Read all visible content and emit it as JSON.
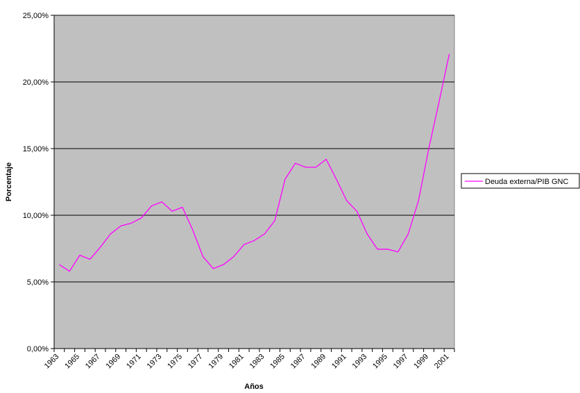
{
  "chart_data": {
    "type": "line",
    "x_label": "Años",
    "y_label": "Porcentaje",
    "categories": [
      "1963",
      null,
      "1965",
      null,
      "1967",
      null,
      "1969",
      null,
      "1971",
      null,
      "1973",
      null,
      "1975",
      null,
      "1977",
      null,
      "1979",
      null,
      "1981",
      null,
      "1983",
      null,
      "1985",
      null,
      "1987",
      null,
      "1989",
      null,
      "1991",
      null,
      "1993",
      null,
      "1995",
      null,
      "1997",
      null,
      "1999",
      null,
      "2001"
    ],
    "series": [
      {
        "name": "Deuda externa/PIB GNC",
        "color": "#ff00ff",
        "values": [
          6.3,
          5.8,
          7.0,
          6.7,
          7.6,
          8.6,
          9.2,
          9.4,
          9.8,
          10.7,
          11.0,
          10.3,
          10.6,
          8.9,
          6.9,
          6.0,
          6.3,
          6.9,
          7.8,
          8.1,
          8.6,
          9.6,
          12.7,
          13.9,
          13.6,
          13.6,
          14.2,
          12.7,
          11.1,
          10.3,
          8.6,
          7.45,
          7.45,
          7.25,
          8.6,
          11.1,
          15.0,
          18.5,
          22.1
        ]
      }
    ],
    "ylim": [
      0,
      25
    ],
    "yticks": [
      {
        "value": 0,
        "label": "0,00%"
      },
      {
        "value": 5,
        "label": "5,00%"
      },
      {
        "value": 10,
        "label": "10,00%"
      },
      {
        "value": 15,
        "label": "15,00%"
      },
      {
        "value": 20,
        "label": "20,00%"
      },
      {
        "value": 25,
        "label": "25,00%"
      }
    ],
    "grid": true,
    "plot_background": "#c0c0c0",
    "legend": "right"
  }
}
